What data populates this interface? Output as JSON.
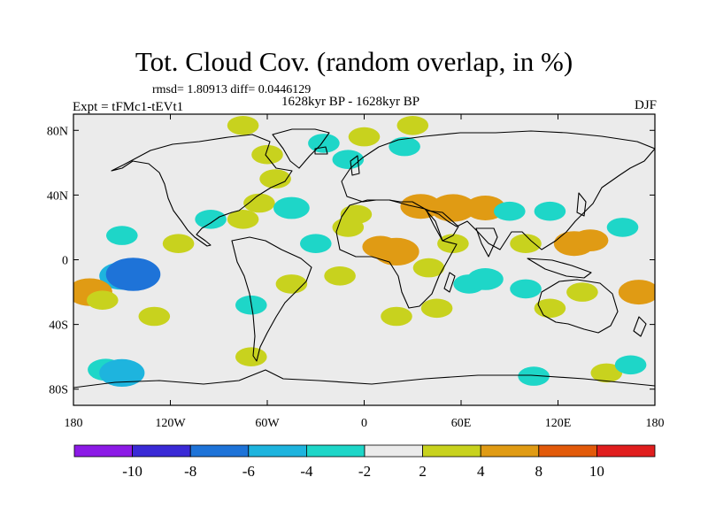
{
  "title": "Tot. Cloud Cov. (random overlap, in %)",
  "stats": "rmsd= 1.80913 diff= 0.0446129",
  "expt": "Expt = tFMc1-tEVt1",
  "period": "1628kyr BP - 1628kyr BP",
  "season": "DJF",
  "colors": {
    "background_field": "#ebebeb",
    "land_outline": "#000000",
    "bins": [
      "#8c1ae6",
      "#3a2ad6",
      "#1e73d8",
      "#1eb4de",
      "#1ed6c8",
      "#ebebeb",
      "#c8d21e",
      "#e09b14",
      "#e25a0a",
      "#e01e1e"
    ]
  },
  "chart_data": {
    "type": "heatmap",
    "projection": "cylindrical-equidistant",
    "x_ticks": [
      "180",
      "120W",
      "60W",
      "0",
      "60E",
      "120E",
      "180"
    ],
    "y_ticks": [
      "80N",
      "40N",
      "0",
      "40S",
      "80S"
    ],
    "xlim": [
      -180,
      180
    ],
    "ylim": [
      -90,
      90
    ],
    "colorbar": {
      "labels": [
        "-10",
        "-8",
        "-6",
        "-4",
        "-2",
        "2",
        "4",
        "8",
        "10"
      ],
      "levels": [
        -10,
        -8,
        -6,
        -4,
        -2,
        2,
        4,
        8,
        10
      ]
    },
    "regions": [
      {
        "lon": -150,
        "lat": -10,
        "value": -6
      },
      {
        "lon": -143,
        "lat": -9,
        "value": -8
      },
      {
        "lon": -170,
        "lat": -20,
        "value": 6
      },
      {
        "lon": -162,
        "lat": -25,
        "value": 3
      },
      {
        "lon": -130,
        "lat": -35,
        "value": 3
      },
      {
        "lon": -150,
        "lat": 15,
        "value": -3
      },
      {
        "lon": -115,
        "lat": 10,
        "value": 3
      },
      {
        "lon": -65,
        "lat": 35,
        "value": 3
      },
      {
        "lon": -45,
        "lat": 32,
        "value": -4
      },
      {
        "lon": -30,
        "lat": 10,
        "value": -3
      },
      {
        "lon": -55,
        "lat": 50,
        "value": 3
      },
      {
        "lon": -75,
        "lat": 25,
        "value": 3
      },
      {
        "lon": -95,
        "lat": 25,
        "value": -3
      },
      {
        "lon": -60,
        "lat": 65,
        "value": 3
      },
      {
        "lon": -75,
        "lat": 83,
        "value": 3
      },
      {
        "lon": -25,
        "lat": 72,
        "value": -3
      },
      {
        "lon": -10,
        "lat": 62,
        "value": -3
      },
      {
        "lon": 0,
        "lat": 76,
        "value": 3
      },
      {
        "lon": 25,
        "lat": 70,
        "value": -3
      },
      {
        "lon": 30,
        "lat": 83,
        "value": 3
      },
      {
        "lon": -5,
        "lat": 28,
        "value": 3
      },
      {
        "lon": 35,
        "lat": 33,
        "value": 5
      },
      {
        "lon": 55,
        "lat": 32,
        "value": 6
      },
      {
        "lon": 75,
        "lat": 32,
        "value": 5
      },
      {
        "lon": 90,
        "lat": 30,
        "value": -3
      },
      {
        "lon": 100,
        "lat": 10,
        "value": 3
      },
      {
        "lon": 115,
        "lat": 30,
        "value": -3
      },
      {
        "lon": 130,
        "lat": 10,
        "value": 5
      },
      {
        "lon": 140,
        "lat": 12,
        "value": 4
      },
      {
        "lon": 160,
        "lat": 20,
        "value": -3
      },
      {
        "lon": 20,
        "lat": 5,
        "value": 6
      },
      {
        "lon": 10,
        "lat": 8,
        "value": 4
      },
      {
        "lon": -10,
        "lat": 20,
        "value": 3
      },
      {
        "lon": 40,
        "lat": -5,
        "value": 3
      },
      {
        "lon": 55,
        "lat": 10,
        "value": 3
      },
      {
        "lon": 45,
        "lat": -30,
        "value": 3
      },
      {
        "lon": 65,
        "lat": -15,
        "value": -3
      },
      {
        "lon": 75,
        "lat": -12,
        "value": -4
      },
      {
        "lon": 100,
        "lat": -18,
        "value": -3
      },
      {
        "lon": 115,
        "lat": -30,
        "value": 3
      },
      {
        "lon": 135,
        "lat": -20,
        "value": 3
      },
      {
        "lon": 170,
        "lat": -20,
        "value": 5
      },
      {
        "lon": -15,
        "lat": -10,
        "value": 3
      },
      {
        "lon": -45,
        "lat": -15,
        "value": 3
      },
      {
        "lon": -70,
        "lat": -28,
        "value": -3
      },
      {
        "lon": 20,
        "lat": -35,
        "value": 3
      },
      {
        "lon": -160,
        "lat": -68,
        "value": -4
      },
      {
        "lon": -150,
        "lat": -70,
        "value": -6
      },
      {
        "lon": -70,
        "lat": -60,
        "value": 3
      },
      {
        "lon": 105,
        "lat": -72,
        "value": -3
      },
      {
        "lon": 150,
        "lat": -70,
        "value": 3
      },
      {
        "lon": 165,
        "lat": -65,
        "value": -3
      }
    ]
  }
}
